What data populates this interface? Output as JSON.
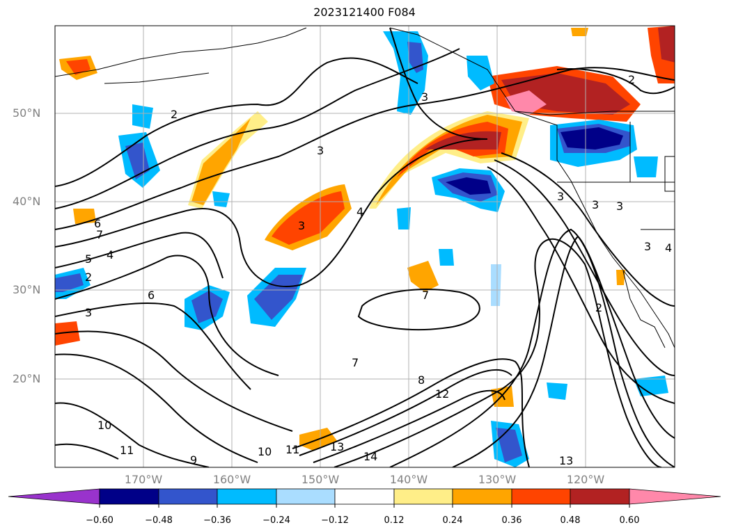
{
  "title": "2023121400 F084",
  "lon_labels": [
    "170°W",
    "160°W",
    "150°W",
    "140°W",
    "130°W",
    "120°W"
  ],
  "lat_labels": [
    "50°N",
    "40°N",
    "30°N",
    "20°N"
  ],
  "colorbar": {
    "ticks": [
      "−0.60",
      "−0.48",
      "−0.36",
      "−0.24",
      "−0.12",
      "0.12",
      "0.24",
      "0.36",
      "0.48",
      "0.60"
    ],
    "colors": [
      "#9933cc",
      "#000088",
      "#3355cc",
      "#00bbff",
      "#aaddff",
      "#ffffff",
      "#ffee88",
      "#ffa500",
      "#ff4400",
      "#b22222",
      "#ff88aa"
    ]
  },
  "contour_labels": [
    "2",
    "3",
    "3",
    "4",
    "3",
    "6",
    "7",
    "5",
    "4",
    "2",
    "3",
    "6",
    "7",
    "7",
    "8",
    "12",
    "10",
    "11",
    "9",
    "10",
    "11",
    "13",
    "14",
    "13",
    "2",
    "3",
    "3",
    "3",
    "2",
    "3",
    "4"
  ]
}
